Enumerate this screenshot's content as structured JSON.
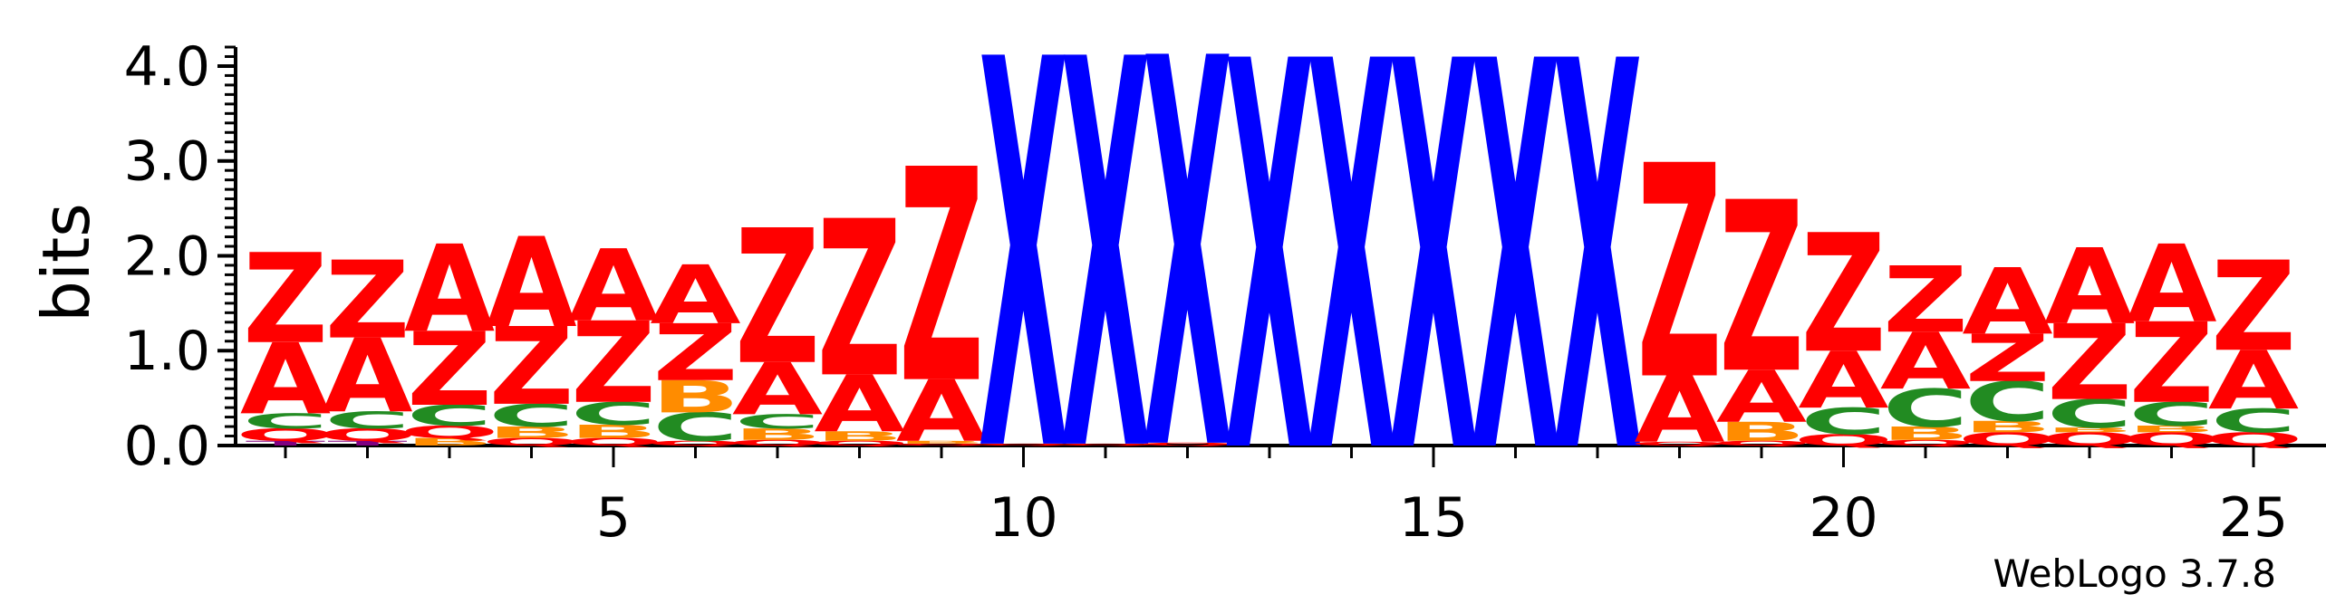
{
  "chart_data": {
    "type": "sequence-logo",
    "ylabel": "bits",
    "ylim": [
      0,
      4.2
    ],
    "yticks": [
      "0.0",
      "1.0",
      "2.0",
      "3.0",
      "4.0"
    ],
    "xticks": [
      5,
      10,
      15,
      20,
      25
    ],
    "x_start": 1,
    "x_end": 25,
    "colors": {
      "Z": "#ff0000",
      "A": "#ff0000",
      "Q": "#ff0000",
      "X": "#0000ff",
      "C": "#228b22",
      "B": "#ff8c00",
      "T": "#800080"
    },
    "positions": [
      {
        "pos": 1,
        "stack": [
          {
            "s": "T",
            "b": 0.05
          },
          {
            "s": "Q",
            "b": 0.13
          },
          {
            "s": "C",
            "b": 0.16
          },
          {
            "s": "A",
            "b": 0.75
          },
          {
            "s": "Z",
            "b": 0.95
          }
        ]
      },
      {
        "pos": 2,
        "stack": [
          {
            "s": "T",
            "b": 0.05
          },
          {
            "s": "Q",
            "b": 0.13
          },
          {
            "s": "C",
            "b": 0.18
          },
          {
            "s": "A",
            "b": 0.78
          },
          {
            "s": "Z",
            "b": 0.82
          }
        ]
      },
      {
        "pos": 3,
        "stack": [
          {
            "s": "B",
            "b": 0.08
          },
          {
            "s": "Q",
            "b": 0.13
          },
          {
            "s": "C",
            "b": 0.22
          },
          {
            "s": "Z",
            "b": 0.78
          },
          {
            "s": "A",
            "b": 0.92
          }
        ]
      },
      {
        "pos": 4,
        "stack": [
          {
            "s": "Q",
            "b": 0.08
          },
          {
            "s": "B",
            "b": 0.12
          },
          {
            "s": "C",
            "b": 0.24
          },
          {
            "s": "Z",
            "b": 0.82
          },
          {
            "s": "A",
            "b": 0.95
          }
        ]
      },
      {
        "pos": 5,
        "stack": [
          {
            "s": "Q",
            "b": 0.08
          },
          {
            "s": "B",
            "b": 0.14
          },
          {
            "s": "C",
            "b": 0.24
          },
          {
            "s": "Z",
            "b": 0.86
          },
          {
            "s": "A",
            "b": 0.76
          }
        ]
      },
      {
        "pos": 6,
        "stack": [
          {
            "s": "Q",
            "b": 0.05
          },
          {
            "s": "C",
            "b": 0.3
          },
          {
            "s": "B",
            "b": 0.34
          },
          {
            "s": "Z",
            "b": 0.6
          },
          {
            "s": "A",
            "b": 0.62
          }
        ]
      },
      {
        "pos": 7,
        "stack": [
          {
            "s": "Q",
            "b": 0.06
          },
          {
            "s": "B",
            "b": 0.12
          },
          {
            "s": "C",
            "b": 0.15
          },
          {
            "s": "A",
            "b": 0.55
          },
          {
            "s": "Z",
            "b": 1.42
          }
        ]
      },
      {
        "pos": 8,
        "stack": [
          {
            "s": "Q",
            "b": 0.05
          },
          {
            "s": "B",
            "b": 0.1
          },
          {
            "s": "A",
            "b": 0.6
          },
          {
            "s": "Z",
            "b": 1.65
          }
        ]
      },
      {
        "pos": 9,
        "stack": [
          {
            "s": "Q",
            "b": 0.02
          },
          {
            "s": "B",
            "b": 0.03
          },
          {
            "s": "A",
            "b": 0.65
          },
          {
            "s": "Z",
            "b": 2.25
          }
        ]
      },
      {
        "pos": 10,
        "stack": [
          {
            "s": "Q",
            "b": 0.02
          },
          {
            "s": "X",
            "b": 4.1
          }
        ]
      },
      {
        "pos": 11,
        "stack": [
          {
            "s": "Q",
            "b": 0.02
          },
          {
            "s": "X",
            "b": 4.1
          }
        ]
      },
      {
        "pos": 12,
        "stack": [
          {
            "s": "Q",
            "b": 0.03
          },
          {
            "s": "X",
            "b": 4.1
          }
        ]
      },
      {
        "pos": 13,
        "stack": [
          {
            "s": "X",
            "b": 4.1
          }
        ]
      },
      {
        "pos": 14,
        "stack": [
          {
            "s": "X",
            "b": 4.1
          }
        ]
      },
      {
        "pos": 15,
        "stack": [
          {
            "s": "X",
            "b": 4.1
          }
        ]
      },
      {
        "pos": 16,
        "stack": [
          {
            "s": "X",
            "b": 4.1
          }
        ]
      },
      {
        "pos": 17,
        "stack": [
          {
            "s": "X",
            "b": 4.1
          }
        ]
      },
      {
        "pos": 18,
        "stack": [
          {
            "s": "Q",
            "b": 0.04
          },
          {
            "s": "A",
            "b": 0.7
          },
          {
            "s": "Z",
            "b": 2.25
          }
        ]
      },
      {
        "pos": 19,
        "stack": [
          {
            "s": "Q",
            "b": 0.05
          },
          {
            "s": "B",
            "b": 0.2
          },
          {
            "s": "A",
            "b": 0.55
          },
          {
            "s": "Z",
            "b": 1.8
          }
        ]
      },
      {
        "pos": 20,
        "stack": [
          {
            "s": "Q",
            "b": 0.12
          },
          {
            "s": "C",
            "b": 0.28
          },
          {
            "s": "A",
            "b": 0.6
          },
          {
            "s": "Z",
            "b": 1.25
          }
        ]
      },
      {
        "pos": 21,
        "stack": [
          {
            "s": "Q",
            "b": 0.06
          },
          {
            "s": "B",
            "b": 0.14
          },
          {
            "s": "C",
            "b": 0.4
          },
          {
            "s": "A",
            "b": 0.6
          },
          {
            "s": "Z",
            "b": 0.7
          }
        ]
      },
      {
        "pos": 22,
        "stack": [
          {
            "s": "Q",
            "b": 0.14
          },
          {
            "s": "B",
            "b": 0.12
          },
          {
            "s": "C",
            "b": 0.42
          },
          {
            "s": "Z",
            "b": 0.5
          },
          {
            "s": "A",
            "b": 0.7
          }
        ]
      },
      {
        "pos": 23,
        "stack": [
          {
            "s": "Q",
            "b": 0.14
          },
          {
            "s": "B",
            "b": 0.05
          },
          {
            "s": "C",
            "b": 0.3
          },
          {
            "s": "Z",
            "b": 0.8
          },
          {
            "s": "A",
            "b": 0.8
          }
        ]
      },
      {
        "pos": 24,
        "stack": [
          {
            "s": "Q",
            "b": 0.14
          },
          {
            "s": "B",
            "b": 0.07
          },
          {
            "s": "C",
            "b": 0.25
          },
          {
            "s": "Z",
            "b": 0.85
          },
          {
            "s": "A",
            "b": 0.82
          }
        ]
      },
      {
        "pos": 25,
        "stack": [
          {
            "s": "Q",
            "b": 0.14
          },
          {
            "s": "C",
            "b": 0.25
          },
          {
            "s": "A",
            "b": 0.62
          },
          {
            "s": "Z",
            "b": 0.95
          }
        ]
      }
    ]
  },
  "credit": "WebLogo 3.7.8"
}
